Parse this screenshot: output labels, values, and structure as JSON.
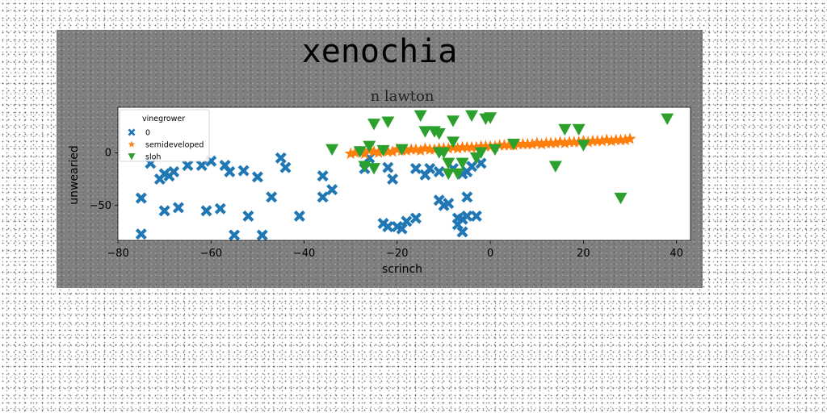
{
  "chart_data": {
    "type": "scatter",
    "title": "xenochia",
    "subtitle": "n lawton",
    "xlabel": "scrinch",
    "ylabel": "unwearied",
    "xlim": [
      -80,
      43
    ],
    "ylim": [
      -83,
      43
    ],
    "xticks": [
      -80,
      -60,
      -40,
      -20,
      0,
      20,
      40
    ],
    "yticks": [
      -50,
      0
    ],
    "grid": false,
    "legend": {
      "title": "vinegrower",
      "placement": "top-left"
    },
    "series": [
      {
        "name": "0",
        "marker": "X",
        "color": "#1f77b4",
        "points": [
          [
            -75,
            -77
          ],
          [
            -75,
            -43
          ],
          [
            -73,
            -10
          ],
          [
            -71,
            -25
          ],
          [
            -70,
            -20
          ],
          [
            -70,
            -55
          ],
          [
            -69,
            -22
          ],
          [
            -68,
            -18
          ],
          [
            -67,
            -52
          ],
          [
            -65,
            -12
          ],
          [
            -62,
            -12
          ],
          [
            -61,
            -55
          ],
          [
            -60,
            -8
          ],
          [
            -58,
            -53
          ],
          [
            -57,
            -12
          ],
          [
            -56,
            -18
          ],
          [
            -55,
            -78
          ],
          [
            -53,
            -17
          ],
          [
            -52,
            -60
          ],
          [
            -50,
            -23
          ],
          [
            -49,
            -78
          ],
          [
            -47,
            -42
          ],
          [
            -45,
            -5
          ],
          [
            -44,
            -14
          ],
          [
            -41,
            -60
          ],
          [
            -36,
            -22
          ],
          [
            -36,
            -42
          ],
          [
            -34,
            -35
          ],
          [
            -27,
            -15
          ],
          [
            -26,
            -5
          ],
          [
            -23,
            -67
          ],
          [
            -22,
            -14
          ],
          [
            -22,
            -70
          ],
          [
            -21,
            -25
          ],
          [
            -20,
            -70
          ],
          [
            -19,
            -72
          ],
          [
            -18,
            -65
          ],
          [
            -16,
            -62
          ],
          [
            -16,
            -15
          ],
          [
            -14,
            -21
          ],
          [
            -13,
            -15
          ],
          [
            -11,
            -18
          ],
          [
            -11,
            -45
          ],
          [
            -10,
            -50
          ],
          [
            -9,
            -48
          ],
          [
            -8,
            -15
          ],
          [
            -7,
            -62
          ],
          [
            -7,
            -68
          ],
          [
            -6,
            -75
          ],
          [
            -6,
            -63
          ],
          [
            -5,
            -60
          ],
          [
            -5,
            -18
          ],
          [
            -5,
            -42
          ],
          [
            -4,
            -13
          ],
          [
            -3,
            -60
          ],
          [
            -2,
            -10
          ],
          [
            -6,
            -20
          ]
        ]
      },
      {
        "name": "semideveloped",
        "marker": "*",
        "color": "#ff7f0e",
        "points": [
          [
            -30,
            -1
          ],
          [
            -29,
            0
          ],
          [
            -28,
            1
          ],
          [
            -27,
            -1
          ],
          [
            -26,
            2
          ],
          [
            -25,
            1
          ],
          [
            -24,
            0
          ],
          [
            -23,
            2
          ],
          [
            -22,
            1
          ],
          [
            -21,
            1
          ],
          [
            -20,
            3
          ],
          [
            -19,
            2
          ],
          [
            -18,
            2
          ],
          [
            -17,
            3
          ],
          [
            -16,
            3
          ],
          [
            -15,
            2
          ],
          [
            -14,
            4
          ],
          [
            -13,
            3
          ],
          [
            -12,
            3
          ],
          [
            -11,
            4
          ],
          [
            -10,
            4
          ],
          [
            -9,
            4
          ],
          [
            -8,
            5
          ],
          [
            -7,
            4
          ],
          [
            -6,
            5
          ],
          [
            -5,
            5
          ],
          [
            -4,
            5
          ],
          [
            -3,
            5
          ],
          [
            -2,
            6
          ],
          [
            -1,
            6
          ],
          [
            0,
            6
          ],
          [
            1,
            6
          ],
          [
            2,
            7
          ],
          [
            3,
            7
          ],
          [
            4,
            7
          ],
          [
            5,
            7
          ],
          [
            6,
            8
          ],
          [
            7,
            8
          ],
          [
            8,
            8
          ],
          [
            9,
            8
          ],
          [
            10,
            9
          ],
          [
            11,
            8
          ],
          [
            12,
            9
          ],
          [
            13,
            9
          ],
          [
            14,
            9
          ],
          [
            15,
            10
          ],
          [
            16,
            9
          ],
          [
            17,
            10
          ],
          [
            18,
            10
          ],
          [
            19,
            10
          ],
          [
            20,
            11
          ],
          [
            21,
            10
          ],
          [
            22,
            11
          ],
          [
            23,
            11
          ],
          [
            24,
            11
          ],
          [
            25,
            12
          ],
          [
            26,
            11
          ],
          [
            27,
            12
          ],
          [
            28,
            12
          ],
          [
            29,
            12
          ],
          [
            30,
            13
          ]
        ]
      },
      {
        "name": "sloh",
        "marker": "v",
        "color": "#2ca02c",
        "points": [
          [
            -34,
            3
          ],
          [
            -28,
            1
          ],
          [
            -27,
            -13
          ],
          [
            -26,
            6
          ],
          [
            -25,
            27
          ],
          [
            -23,
            2
          ],
          [
            -22,
            29
          ],
          [
            -19,
            3
          ],
          [
            -15,
            35
          ],
          [
            -14,
            20
          ],
          [
            -12,
            20
          ],
          [
            -11,
            18
          ],
          [
            -10,
            0
          ],
          [
            -9,
            -10
          ],
          [
            -9,
            -20
          ],
          [
            -8,
            30
          ],
          [
            -8,
            10
          ],
          [
            -7,
            -20
          ],
          [
            -6,
            -10
          ],
          [
            -4,
            35
          ],
          [
            -3,
            -5
          ],
          [
            -2,
            0
          ],
          [
            -1,
            32
          ],
          [
            0,
            33
          ],
          [
            1,
            3
          ],
          [
            5,
            8
          ],
          [
            14,
            -13
          ],
          [
            16,
            22
          ],
          [
            19,
            22
          ],
          [
            20,
            7
          ],
          [
            28,
            -43
          ],
          [
            38,
            32
          ],
          [
            -11,
            0
          ],
          [
            -25,
            -15
          ]
        ]
      }
    ]
  }
}
